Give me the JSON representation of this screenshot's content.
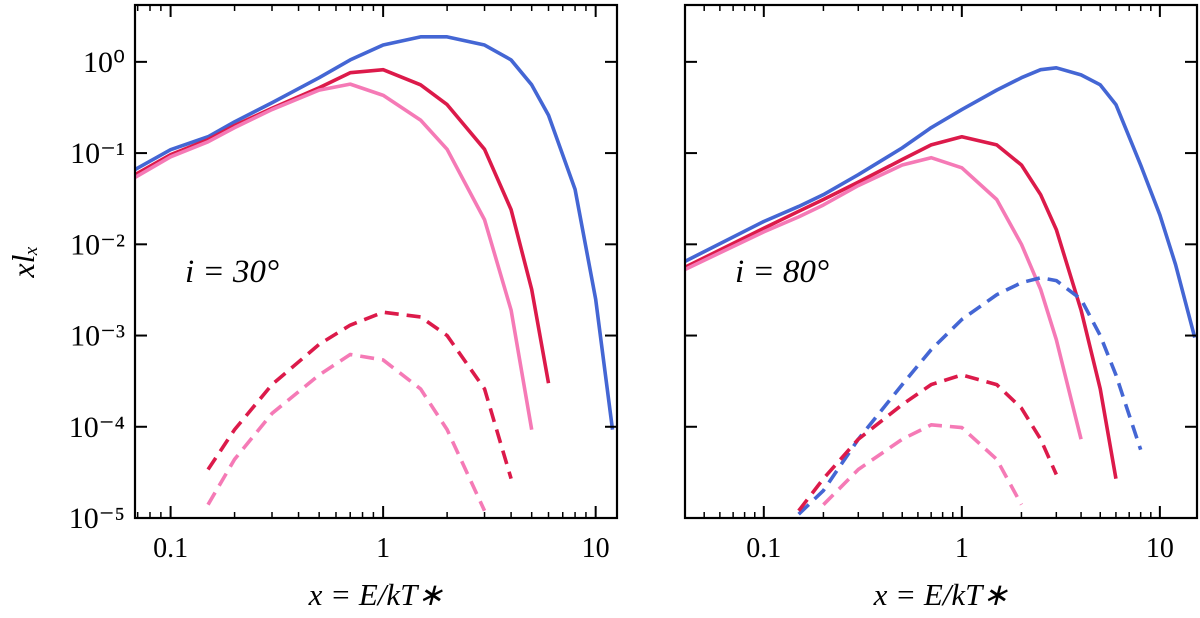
{
  "chart_data": [
    {
      "type": "line",
      "xscale": "log",
      "yscale": "log",
      "xlabel": "x = E/kT∗",
      "ylabel": "xlₓ",
      "annotation": "i = 30°",
      "xlim": [
        0.068,
        12.6
      ],
      "ylim": [
        1e-05,
        4.2
      ],
      "xticks": [
        0.1,
        1,
        10
      ],
      "yticks": [
        {
          "value": 1,
          "label": "10⁰"
        },
        {
          "value": 0.1,
          "label": "10⁻¹"
        },
        {
          "value": 0.01,
          "label": "10⁻²"
        },
        {
          "value": 0.001,
          "label": "10⁻³"
        },
        {
          "value": 0.0001,
          "label": "10⁻⁴"
        },
        {
          "value": 1e-05,
          "label": "10⁻⁵"
        }
      ],
      "x": [
        0.068,
        0.1,
        0.15,
        0.2,
        0.3,
        0.5,
        0.7,
        1,
        1.5,
        2,
        3,
        4,
        5,
        6,
        8,
        10,
        12
      ],
      "series": [
        {
          "color": "#4466d4",
          "dashed": false,
          "values": [
            0.066,
            0.109,
            0.151,
            0.22,
            0.356,
            0.67,
            1.05,
            1.53,
            1.88,
            1.88,
            1.53,
            1.05,
            0.56,
            0.26,
            0.04,
            0.0025,
            9.3e-05
          ]
        },
        {
          "color": "#dc1a4a",
          "dashed": false,
          "values": [
            0.058,
            0.096,
            0.14,
            0.2,
            0.31,
            0.52,
            0.76,
            0.82,
            0.56,
            0.34,
            0.11,
            0.024,
            0.0032,
            0.0003,
            null,
            null,
            null
          ]
        },
        {
          "color": "#f57ab6",
          "dashed": false,
          "values": [
            0.054,
            0.091,
            0.133,
            0.19,
            0.3,
            0.49,
            0.57,
            0.43,
            0.23,
            0.11,
            0.0186,
            0.0019,
            9.3e-05,
            null,
            null,
            null,
            null
          ]
        },
        {
          "color": "#dc1a4a",
          "dashed": true,
          "values": [
            null,
            null,
            3.4e-05,
            9.3e-05,
            0.00029,
            0.0008,
            0.0013,
            0.0018,
            0.0016,
            0.001,
            0.00026,
            2.7e-05,
            null,
            null,
            null,
            null,
            null
          ]
        },
        {
          "color": "#f57ab6",
          "dashed": true,
          "values": [
            null,
            null,
            1.4e-05,
            4.4e-05,
            0.00014,
            0.00037,
            0.00062,
            0.00054,
            0.00026,
            9.3e-05,
            1.2e-05,
            null,
            null,
            null,
            null,
            null,
            null
          ]
        }
      ]
    },
    {
      "type": "line",
      "xscale": "log",
      "yscale": "log",
      "xlabel": "x = E/kT∗",
      "annotation": "i = 80°",
      "ytick_labels": false,
      "xlim": [
        0.04,
        15.4
      ],
      "ylim": [
        1e-05,
        4.2
      ],
      "xticks": [
        0.1,
        1,
        10
      ],
      "yticks": [
        1,
        0.1,
        0.01,
        0.001,
        0.0001,
        1e-05
      ],
      "x": [
        0.04,
        0.1,
        0.15,
        0.2,
        0.3,
        0.5,
        0.7,
        1,
        1.5,
        2,
        2.5,
        3,
        4,
        5,
        6,
        8,
        10,
        12,
        15
      ],
      "series": [
        {
          "color": "#4466d4",
          "dashed": false,
          "values": [
            0.0065,
            0.0178,
            0.026,
            0.035,
            0.058,
            0.114,
            0.19,
            0.3,
            0.49,
            0.67,
            0.82,
            0.86,
            0.72,
            0.56,
            0.34,
            0.074,
            0.021,
            0.006,
            0.00095
          ]
        },
        {
          "color": "#dc1a4a",
          "dashed": false,
          "values": [
            0.0056,
            0.015,
            0.023,
            0.031,
            0.048,
            0.085,
            0.123,
            0.151,
            0.123,
            0.074,
            0.035,
            0.0145,
            0.0019,
            0.00026,
            2.7e-05,
            null,
            null,
            null,
            null
          ]
        },
        {
          "color": "#f57ab6",
          "dashed": false,
          "values": [
            0.0053,
            0.0137,
            0.02,
            0.027,
            0.044,
            0.074,
            0.089,
            0.069,
            0.031,
            0.01,
            0.0032,
            0.0009,
            7.3e-05,
            null,
            null,
            null,
            null,
            null,
            null
          ]
        },
        {
          "color": "#4466d4",
          "dashed": true,
          "values": [
            null,
            null,
            1.1e-05,
            2e-05,
            7.3e-05,
            0.00029,
            0.0007,
            0.0015,
            0.0028,
            0.0038,
            0.0043,
            0.004,
            0.0025,
            0.001,
            0.00037,
            5.6e-05,
            null,
            null,
            null
          ]
        },
        {
          "color": "#dc1a4a",
          "dashed": true,
          "values": [
            null,
            null,
            1.2e-05,
            2.7e-05,
            7.3e-05,
            0.000175,
            0.00029,
            0.00037,
            0.00029,
            0.00016,
            7.3e-05,
            3e-05,
            null,
            null,
            null,
            null,
            null,
            null,
            null
          ]
        },
        {
          "color": "#f57ab6",
          "dashed": true,
          "values": [
            null,
            null,
            null,
            1.4e-05,
            3.4e-05,
            7.3e-05,
            0.000105,
            9.8e-05,
            4.4e-05,
            1.4e-05,
            null,
            null,
            null,
            null,
            null,
            null,
            null,
            null,
            null
          ]
        }
      ]
    }
  ]
}
